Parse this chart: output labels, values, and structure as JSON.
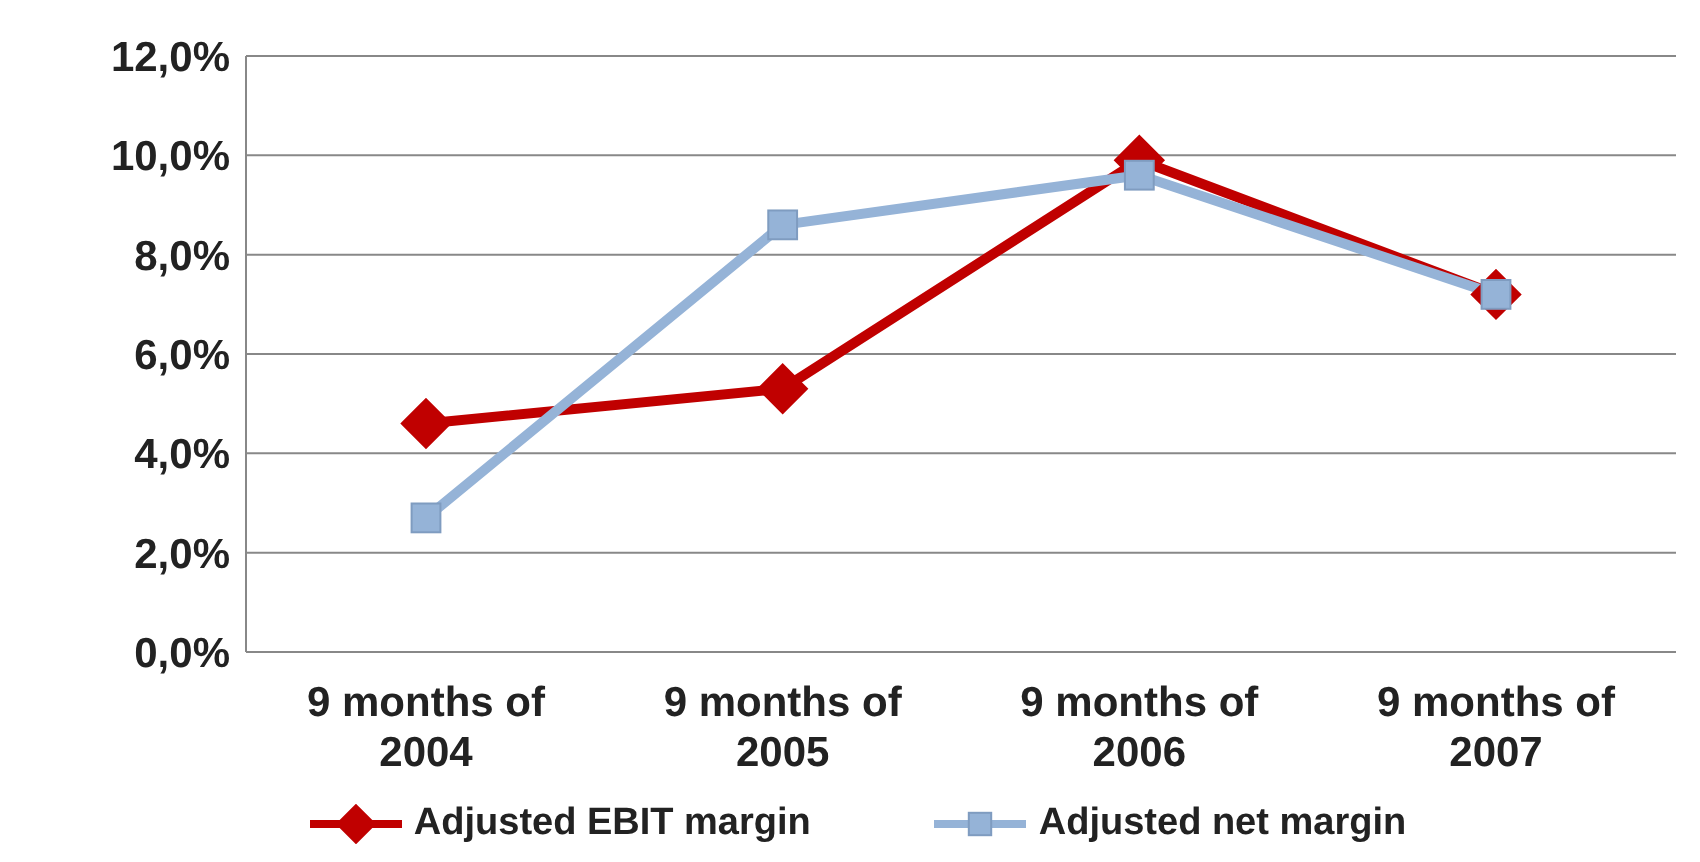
{
  "chart_data": {
    "type": "line",
    "categories": [
      "9 months of 2004",
      "9 months of 2005",
      "9 months of 2006",
      "9 months of 2007"
    ],
    "series": [
      {
        "name": "Adjusted EBIT margin",
        "color": "#c00000",
        "marker": "diamond",
        "values": [
          4.6,
          5.3,
          9.9,
          7.2
        ]
      },
      {
        "name": "Adjusted net margin",
        "color": "#95b3d7",
        "marker": "square",
        "values": [
          2.7,
          8.6,
          9.6,
          7.2
        ]
      }
    ],
    "ylim": [
      0,
      12
    ],
    "yticks": [
      {
        "value": 0,
        "label": "0,0%"
      },
      {
        "value": 2,
        "label": "2,0%"
      },
      {
        "value": 4,
        "label": "4,0%"
      },
      {
        "value": 6,
        "label": "6,0%"
      },
      {
        "value": 8,
        "label": "8,0%"
      },
      {
        "value": 10,
        "label": "10,0%"
      },
      {
        "value": 12,
        "label": "12,0%"
      }
    ],
    "grid": "y",
    "legend": "bottom",
    "line_style": "solid"
  }
}
